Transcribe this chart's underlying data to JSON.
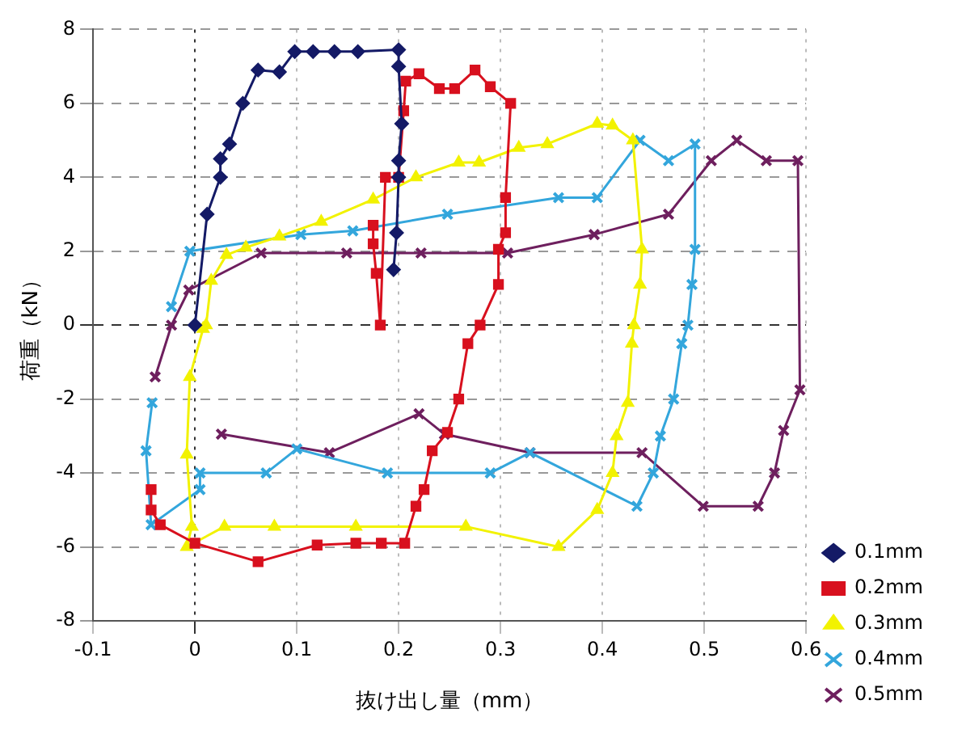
{
  "chart_data": {
    "type": "line",
    "xlabel": "抜け出し量（mm）",
    "ylabel": "荷重（kN）",
    "xlim": [
      -0.1,
      0.6
    ],
    "xticks": [
      -0.1,
      0,
      0.1,
      0.2,
      0.3,
      0.4,
      0.5,
      0.6
    ],
    "ylim": [
      -8,
      8
    ],
    "yticks": [
      -8,
      -6,
      -4,
      -2,
      0,
      2,
      4,
      6,
      8
    ],
    "grid": true,
    "legend": "bottom right",
    "line_style": "solid",
    "series": [
      {
        "name": "0.1mm",
        "color": "#141a66",
        "marker": "diamond",
        "x": [
          0,
          0.012,
          0.025,
          0.025,
          0.034,
          0.047,
          0.062,
          0.083,
          0.098,
          0.116,
          0.137,
          0.16,
          0.2,
          0.2,
          0.203,
          0.2,
          0.2,
          0.198,
          0.195
        ],
        "values": [
          0,
          3.0,
          4.0,
          4.5,
          4.9,
          6.0,
          6.9,
          6.85,
          7.4,
          7.4,
          7.4,
          7.4,
          7.45,
          7.0,
          5.45,
          4.45,
          4.0,
          2.5,
          1.5
        ]
      },
      {
        "name": "0.2mm",
        "color": "#d8101e",
        "marker": "square",
        "x": [
          0.175,
          0.175,
          0.178,
          0.182,
          0.187,
          0.2,
          0.205,
          0.207,
          0.22,
          0.24,
          0.255,
          0.275,
          0.29,
          0.31,
          0.305,
          0.305,
          0.298,
          0.298,
          0.28,
          0.268,
          0.259,
          0.248,
          0.233,
          0.225,
          0.217,
          0.206,
          0.183,
          0.158,
          0.12,
          0.062,
          0,
          -0.034,
          -0.043,
          -0.043
        ],
        "values": [
          2.7,
          2.2,
          1.4,
          0,
          4.0,
          4.0,
          5.8,
          6.6,
          6.8,
          6.4,
          6.4,
          6.9,
          6.45,
          6.0,
          3.45,
          2.5,
          2.05,
          1.1,
          0,
          -0.5,
          -2.0,
          -2.9,
          -3.4,
          -4.45,
          -4.9,
          -5.9,
          -5.9,
          -5.9,
          -5.95,
          -6.4,
          -5.9,
          -5.4,
          -5.0,
          -4.45
        ]
      },
      {
        "name": "0.3mm",
        "color": "#f2f200",
        "marker": "triangle",
        "x": [
          0.011,
          0.016,
          0.031,
          0.05,
          0.083,
          0.124,
          0.175,
          0.217,
          0.259,
          0.279,
          0.318,
          0.346,
          0.395,
          0.41,
          0.43,
          0.439,
          0.437,
          0.431,
          0.429,
          0.425,
          0.414,
          0.41,
          0.395,
          0.357,
          0.266,
          0.158,
          0.078,
          0.029,
          -0.008,
          -0.003,
          -0.008,
          -0.005,
          0.008
        ],
        "values": [
          0,
          1.2,
          1.9,
          2.1,
          2.4,
          2.8,
          3.4,
          4.0,
          4.4,
          4.4,
          4.8,
          4.9,
          5.45,
          5.4,
          5.0,
          2.05,
          1.1,
          0,
          -0.5,
          -2.1,
          -3.0,
          -4.0,
          -5.0,
          -6.0,
          -5.45,
          -5.45,
          -5.45,
          -5.45,
          -6.0,
          -5.45,
          -3.5,
          -1.4,
          -0.1
        ]
      },
      {
        "name": "0.4mm",
        "color": "#33a6dc",
        "marker": "cross",
        "x": [
          -0.023,
          -0.005,
          0.104,
          0.155,
          0.248,
          0.357,
          0.395,
          0.437,
          0.465,
          0.491,
          0.491,
          0.488,
          0.484,
          0.478,
          0.47,
          0.457,
          0.45,
          0.434,
          0.329,
          0.29,
          0.189,
          0.1,
          0.07,
          0.005,
          0.005,
          -0.043,
          -0.048,
          -0.042
        ],
        "values": [
          0.5,
          2.0,
          2.45,
          2.55,
          3.0,
          3.45,
          3.45,
          5.0,
          4.45,
          4.9,
          2.05,
          1.1,
          0,
          -0.5,
          -2.0,
          -3.0,
          -4.0,
          -4.9,
          -3.45,
          -4.0,
          -4.0,
          -3.35,
          -4.0,
          -4.0,
          -4.45,
          -5.4,
          -3.4,
          -2.1
        ]
      },
      {
        "name": "0.5mm",
        "color": "#6e1f5e",
        "marker": "cross",
        "x": [
          -0.039,
          -0.023,
          -0.006,
          0.065,
          0.149,
          0.222,
          0.307,
          0.392,
          0.465,
          0.507,
          0.532,
          0.561,
          0.592,
          0.594,
          0.578,
          0.569,
          0.553,
          0.499,
          0.439,
          0.329,
          0.245,
          0.22,
          0.132,
          0.026
        ],
        "values": [
          -1.4,
          0,
          0.95,
          1.95,
          1.95,
          1.95,
          1.95,
          2.45,
          3.0,
          4.45,
          5.0,
          4.45,
          4.45,
          -1.75,
          -2.85,
          -4.0,
          -4.9,
          -4.9,
          -3.45,
          -3.45,
          -2.95,
          -2.4,
          -3.45,
          -2.95
        ]
      }
    ]
  }
}
